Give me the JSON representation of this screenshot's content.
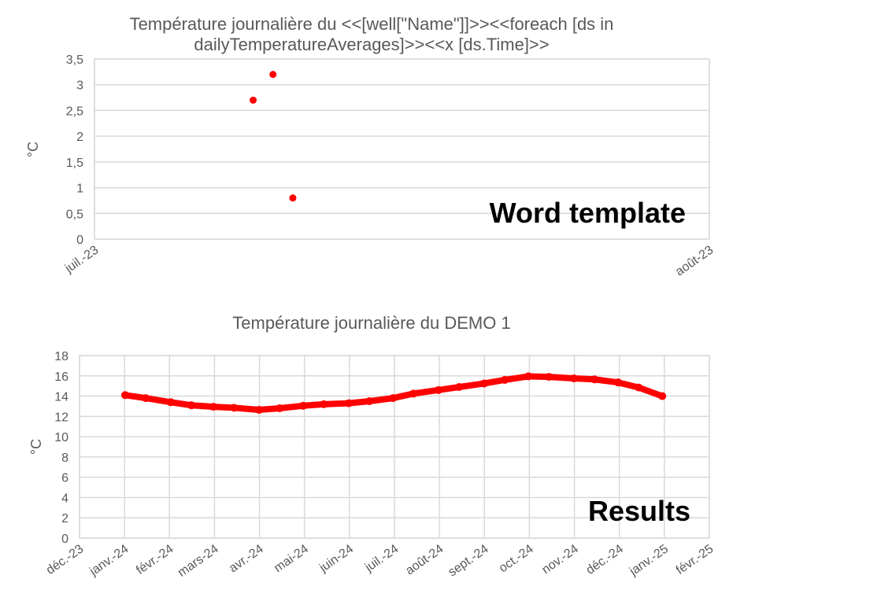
{
  "chart_data": [
    {
      "type": "scatter",
      "title_line1": "Température journalière du <<[well[\"Name\"]]>><<foreach [ds in",
      "title_line2": "dailyTemperatureAverages]>><<x  [ds.Time]>>",
      "ylabel": "°C",
      "ylim": [
        0,
        3.5
      ],
      "yticks": [
        "0",
        "0,5",
        "1",
        "1,5",
        "2",
        "2,5",
        "3",
        "3,5"
      ],
      "xticks": [
        "juil.-23",
        "août-23"
      ],
      "points": [
        {
          "x": "2023-07-09",
          "y": 2.7
        },
        {
          "x": "2023-07-10",
          "y": 3.2
        },
        {
          "x": "2023-07-11",
          "y": 0.8
        }
      ],
      "overlay_label": "Word template",
      "marker_color": "#ff0000"
    },
    {
      "type": "scatter",
      "title": "Température journalière du DEMO 1",
      "ylabel": "°C",
      "ylim": [
        0,
        18
      ],
      "yticks": [
        "0",
        "2",
        "4",
        "6",
        "8",
        "10",
        "12",
        "14",
        "16",
        "18"
      ],
      "xticks": [
        "déc.-23",
        "janv.-24",
        "févr.-24",
        "mars-24",
        "avr.-24",
        "mai-24",
        "juin-24",
        "juil.-24",
        "août-24",
        "sept.-24",
        "oct.-24",
        "nov.-24",
        "déc.-24",
        "janv.-25",
        "févr.-25"
      ],
      "points": [
        {
          "x": "2024-01-01",
          "y": 14.1
        },
        {
          "x": "2024-01-15",
          "y": 13.8
        },
        {
          "x": "2024-02-01",
          "y": 13.4
        },
        {
          "x": "2024-02-15",
          "y": 13.1
        },
        {
          "x": "2024-03-01",
          "y": 12.95
        },
        {
          "x": "2024-03-15",
          "y": 12.85
        },
        {
          "x": "2024-04-01",
          "y": 12.65
        },
        {
          "x": "2024-04-15",
          "y": 12.8
        },
        {
          "x": "2024-05-01",
          "y": 13.05
        },
        {
          "x": "2024-05-15",
          "y": 13.2
        },
        {
          "x": "2024-06-01",
          "y": 13.3
        },
        {
          "x": "2024-06-15",
          "y": 13.5
        },
        {
          "x": "2024-07-01",
          "y": 13.8
        },
        {
          "x": "2024-07-15",
          "y": 14.25
        },
        {
          "x": "2024-08-01",
          "y": 14.6
        },
        {
          "x": "2024-08-15",
          "y": 14.9
        },
        {
          "x": "2024-09-01",
          "y": 15.25
        },
        {
          "x": "2024-09-15",
          "y": 15.6
        },
        {
          "x": "2024-10-01",
          "y": 15.95
        },
        {
          "x": "2024-10-15",
          "y": 15.9
        },
        {
          "x": "2024-11-01",
          "y": 15.75
        },
        {
          "x": "2024-11-15",
          "y": 15.65
        },
        {
          "x": "2024-12-01",
          "y": 15.35
        },
        {
          "x": "2024-12-15",
          "y": 14.85
        },
        {
          "x": "2024-12-31",
          "y": 14.0
        }
      ],
      "overlay_label": "Results",
      "marker_color": "#ff0000"
    }
  ]
}
